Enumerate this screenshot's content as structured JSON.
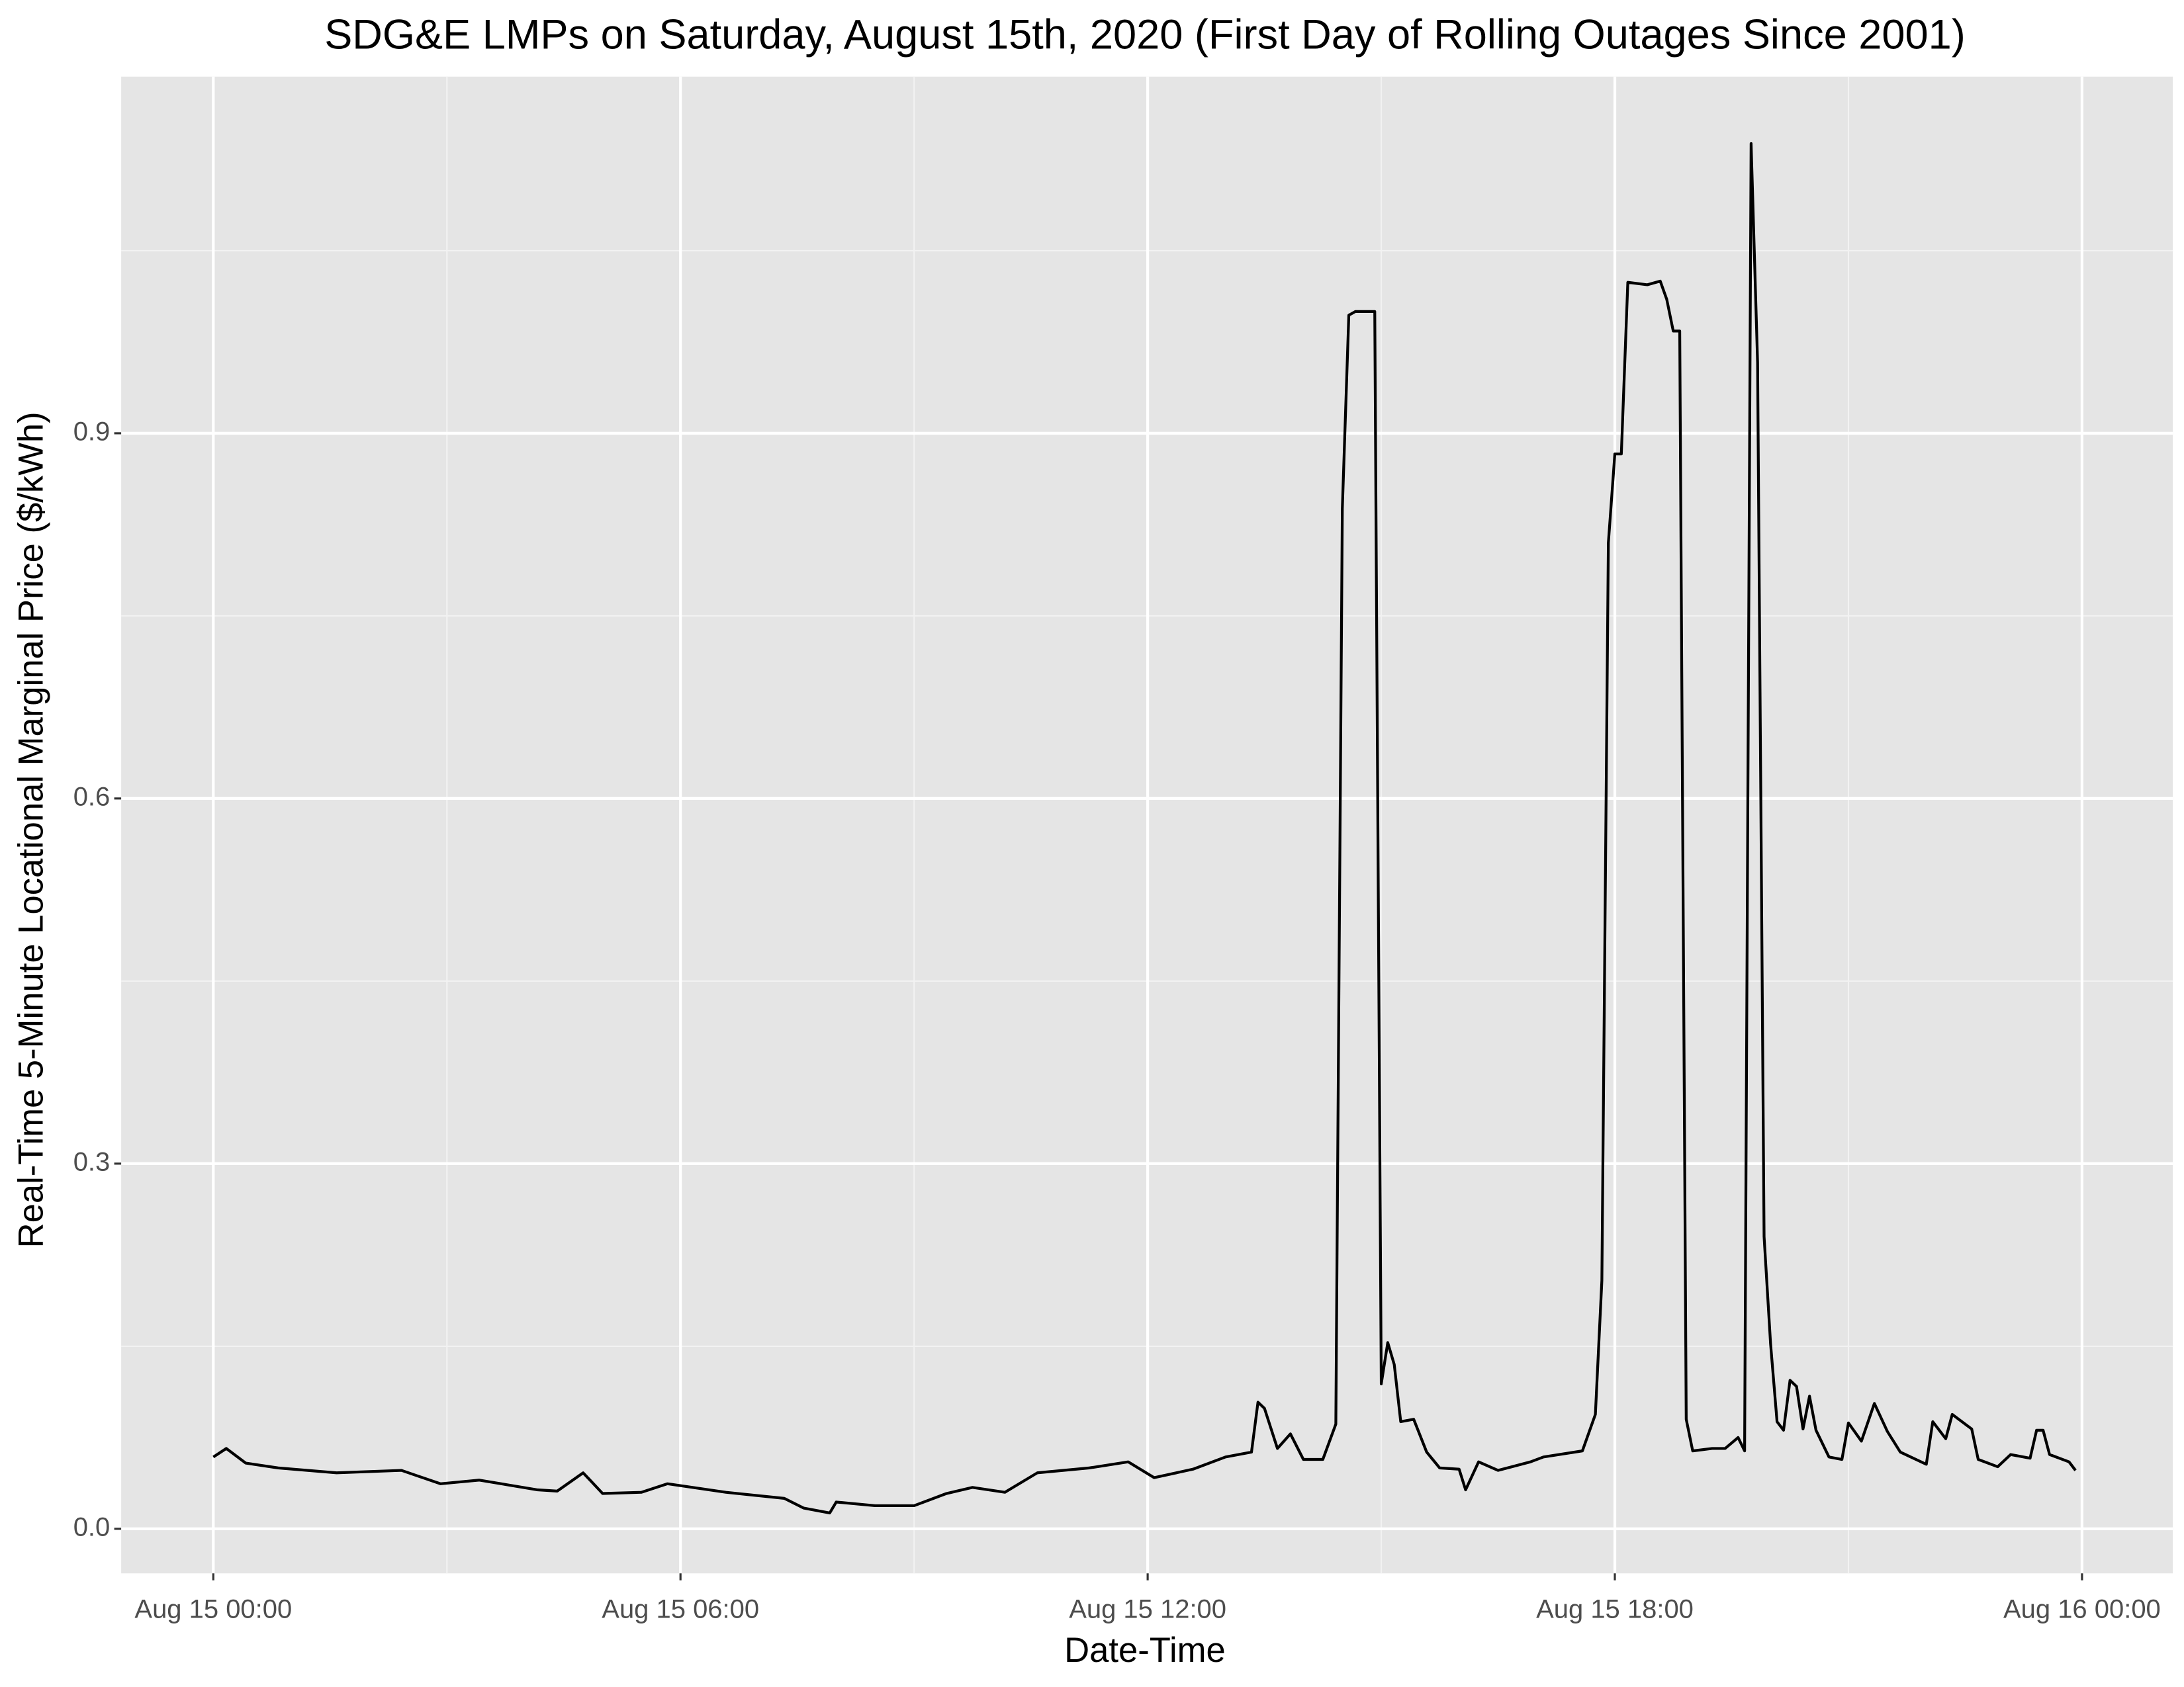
{
  "chart_data": {
    "type": "line",
    "title": "SDG&E LMPs on Saturday, August 15th, 2020 (First Day of Rolling Outages Since 2001)",
    "x_label": "Date-Time",
    "y_label": "Real-Time 5-Minute Locational Marginal Price ($/kWh)",
    "color": "#000000",
    "grid": true,
    "x": [
      "Aug 15 00:00",
      "Aug 15 00:10",
      "Aug 15 00:25",
      "Aug 15 00:50",
      "Aug 15 01:35",
      "Aug 15 02:25",
      "Aug 15 02:55",
      "Aug 15 03:25",
      "Aug 15 04:10",
      "Aug 15 04:25",
      "Aug 15 04:45",
      "Aug 15 05:00",
      "Aug 15 05:30",
      "Aug 15 05:50",
      "Aug 15 06:35",
      "Aug 15 07:20",
      "Aug 15 07:35",
      "Aug 15 07:55",
      "Aug 15 08:00",
      "Aug 15 08:30",
      "Aug 15 09:00",
      "Aug 15 09:25",
      "Aug 15 09:45",
      "Aug 15 10:10",
      "Aug 15 10:35",
      "Aug 15 11:15",
      "Aug 15 11:45",
      "Aug 15 12:05",
      "Aug 15 12:35",
      "Aug 15 13:00",
      "Aug 15 13:20",
      "Aug 15 13:25",
      "Aug 15 13:30",
      "Aug 15 13:40",
      "Aug 15 13:50",
      "Aug 15 14:00",
      "Aug 15 14:15",
      "Aug 15 14:25",
      "Aug 15 14:30",
      "Aug 15 14:35",
      "Aug 15 14:40",
      "Aug 15 14:55",
      "Aug 15 15:00",
      "Aug 15 15:05",
      "Aug 15 15:10",
      "Aug 15 15:15",
      "Aug 15 15:25",
      "Aug 15 15:35",
      "Aug 15 15:45",
      "Aug 15 16:00",
      "Aug 15 16:05",
      "Aug 15 16:15",
      "Aug 15 16:30",
      "Aug 15 16:55",
      "Aug 15 17:05",
      "Aug 15 17:35",
      "Aug 15 17:45",
      "Aug 15 17:50",
      "Aug 15 17:55",
      "Aug 15 18:00",
      "Aug 15 18:05",
      "Aug 15 18:10",
      "Aug 15 18:25",
      "Aug 15 18:35",
      "Aug 15 18:40",
      "Aug 15 18:45",
      "Aug 15 18:50",
      "Aug 15 18:55",
      "Aug 15 19:00",
      "Aug 15 19:15",
      "Aug 15 19:25",
      "Aug 15 19:35",
      "Aug 15 19:40",
      "Aug 15 19:45",
      "Aug 15 19:50",
      "Aug 15 19:55",
      "Aug 15 20:00",
      "Aug 15 20:05",
      "Aug 15 20:10",
      "Aug 15 20:15",
      "Aug 15 20:20",
      "Aug 15 20:25",
      "Aug 15 20:30",
      "Aug 15 20:35",
      "Aug 15 20:45",
      "Aug 15 20:55",
      "Aug 15 21:00",
      "Aug 15 21:10",
      "Aug 15 21:20",
      "Aug 15 21:30",
      "Aug 15 21:40",
      "Aug 15 22:00",
      "Aug 15 22:05",
      "Aug 15 22:15",
      "Aug 15 22:20",
      "Aug 15 22:35",
      "Aug 15 22:40",
      "Aug 15 22:55",
      "Aug 15 23:05",
      "Aug 15 23:20",
      "Aug 15 23:25",
      "Aug 15 23:30",
      "Aug 15 23:35",
      "Aug 15 23:50",
      "Aug 15 23:55"
    ],
    "values": [
      0.059,
      0.066,
      0.054,
      0.05,
      0.046,
      0.048,
      0.037,
      0.04,
      0.032,
      0.031,
      0.046,
      0.029,
      0.03,
      0.037,
      0.03,
      0.025,
      0.017,
      0.013,
      0.022,
      0.019,
      0.019,
      0.029,
      0.034,
      0.03,
      0.046,
      0.05,
      0.055,
      0.042,
      0.049,
      0.059,
      0.063,
      0.104,
      0.099,
      0.066,
      0.078,
      0.057,
      0.057,
      0.086,
      0.838,
      0.997,
      1.0,
      1.0,
      0.119,
      0.153,
      0.135,
      0.088,
      0.09,
      0.063,
      0.05,
      0.049,
      0.032,
      0.055,
      0.048,
      0.055,
      0.059,
      0.064,
      0.094,
      0.204,
      0.81,
      0.883,
      0.883,
      1.024,
      1.022,
      1.025,
      1.01,
      0.984,
      0.984,
      0.09,
      0.064,
      0.066,
      0.066,
      0.075,
      0.064,
      1.138,
      0.958,
      0.24,
      0.152,
      0.088,
      0.081,
      0.122,
      0.117,
      0.082,
      0.109,
      0.081,
      0.059,
      0.057,
      0.087,
      0.072,
      0.103,
      0.08,
      0.063,
      0.053,
      0.088,
      0.074,
      0.094,
      0.082,
      0.057,
      0.051,
      0.061,
      0.058,
      0.081,
      0.081,
      0.061,
      0.055,
      0.048
    ],
    "xlim": [
      "Aug 14 22:49",
      "Aug 16 01:10"
    ],
    "xticks": [
      "Aug 15 00:00",
      "Aug 15 06:00",
      "Aug 15 12:00",
      "Aug 15 18:00",
      "Aug 16 00:00"
    ],
    "ylim": [
      -0.0366,
      1.193
    ],
    "yticks": [
      {
        "value": 0,
        "label": "0.0"
      },
      0.3,
      0.6,
      0.9
    ]
  }
}
